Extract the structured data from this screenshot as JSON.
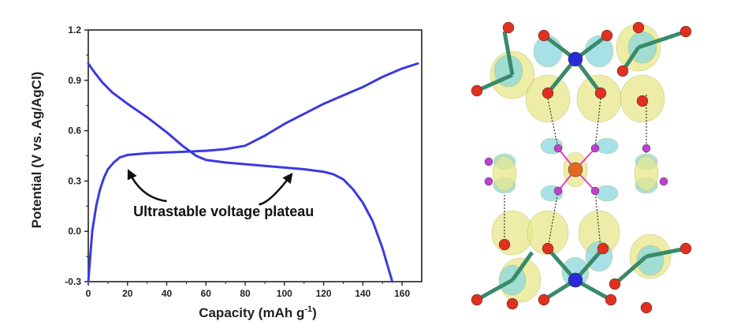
{
  "chart_data": {
    "type": "line",
    "xlabel": "Capacity (mAh g",
    "xlabel_sup": "-1",
    "xlabel_close": ")",
    "ylabel": "Potential (V vs. Ag/AgCl)",
    "xlim": [
      0,
      170
    ],
    "ylim": [
      -0.3,
      1.2
    ],
    "xticks": [
      0,
      20,
      40,
      60,
      80,
      100,
      120,
      140,
      160
    ],
    "yticks": [
      -0.3,
      0.0,
      0.3,
      0.6,
      0.9,
      1.2
    ],
    "yticks_labels": [
      "-0.3",
      "0.0",
      "0.3",
      "0.6",
      "0.9",
      "1.2"
    ],
    "grid": false,
    "line_color": "#3a3ae0",
    "series": [
      {
        "points": [
          [
            0,
            -0.3
          ],
          [
            1,
            -0.15
          ],
          [
            2,
            0.0
          ],
          [
            4,
            0.15
          ],
          [
            6,
            0.25
          ],
          [
            8,
            0.32
          ],
          [
            10,
            0.37
          ],
          [
            13,
            0.41
          ],
          [
            16,
            0.44
          ],
          [
            20,
            0.455
          ],
          [
            30,
            0.465
          ],
          [
            40,
            0.47
          ],
          [
            50,
            0.475
          ],
          [
            60,
            0.48
          ],
          [
            70,
            0.49
          ],
          [
            80,
            0.51
          ],
          [
            90,
            0.57
          ],
          [
            100,
            0.64
          ],
          [
            110,
            0.7
          ],
          [
            120,
            0.76
          ],
          [
            130,
            0.81
          ],
          [
            140,
            0.86
          ],
          [
            150,
            0.92
          ],
          [
            160,
            0.97
          ],
          [
            168,
            1.0
          ]
        ]
      },
      {
        "points": [
          [
            0,
            1.0
          ],
          [
            3,
            0.95
          ],
          [
            7,
            0.89
          ],
          [
            12,
            0.83
          ],
          [
            20,
            0.76
          ],
          [
            30,
            0.68
          ],
          [
            40,
            0.59
          ],
          [
            48,
            0.51
          ],
          [
            55,
            0.45
          ],
          [
            60,
            0.425
          ],
          [
            70,
            0.41
          ],
          [
            80,
            0.4
          ],
          [
            90,
            0.39
          ],
          [
            100,
            0.38
          ],
          [
            110,
            0.37
          ],
          [
            120,
            0.355
          ],
          [
            125,
            0.34
          ],
          [
            130,
            0.31
          ],
          [
            135,
            0.25
          ],
          [
            140,
            0.17
          ],
          [
            145,
            0.06
          ],
          [
            150,
            -0.1
          ],
          [
            153,
            -0.22
          ],
          [
            155,
            -0.3
          ]
        ]
      }
    ],
    "annotations": [
      {
        "text": "Ultrastable voltage plateau",
        "x": 69,
        "y": 0.09
      }
    ],
    "arrows": [
      {
        "from": [
          40,
          0.18
        ],
        "to": [
          21,
          0.35
        ]
      },
      {
        "from": [
          87,
          0.16
        ],
        "to": [
          103,
          0.33
        ]
      }
    ]
  },
  "structure": {
    "atom_colors": {
      "oxygen": "#e03020",
      "vanadium": "#2a2ad8",
      "center": "#e06a20",
      "ligand": "#c040d0"
    },
    "isosurface_colors": {
      "positive": "#e8e88a",
      "negative": "#8ad8e0"
    }
  }
}
